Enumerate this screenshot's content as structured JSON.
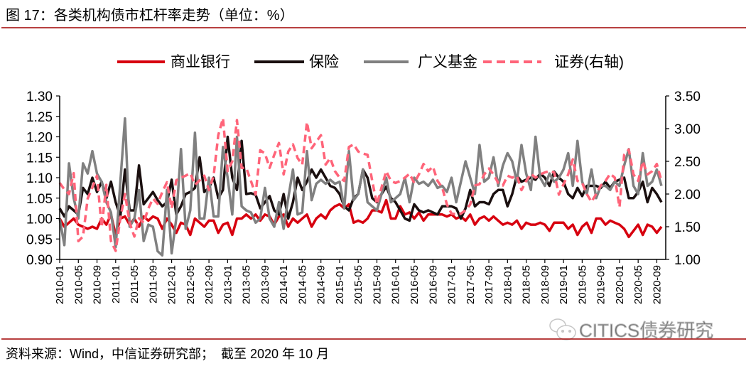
{
  "title": "图 17：各类机构债市杠杆率走势（单位：%）",
  "source": "资料来源：Wind，中信证券研究部；  截至 2020 年 10 月",
  "watermark": "CITICS债券研究",
  "chart_data": {
    "type": "line",
    "legend_position": "top",
    "grid": false,
    "y_left": {
      "range": [
        0.9,
        1.3
      ],
      "ticks": [
        "0.90",
        "0.95",
        "1.00",
        "1.05",
        "1.10",
        "1.15",
        "1.20",
        "1.25",
        "1.30"
      ]
    },
    "y_right": {
      "range": [
        1.0,
        3.5
      ],
      "ticks": [
        "1.00",
        "1.50",
        "2.00",
        "2.50",
        "3.00",
        "3.50"
      ]
    },
    "x_ticks": [
      "2010-01",
      "2010-05",
      "2010-09",
      "2011-01",
      "2011-05",
      "2011-09",
      "2012-01",
      "2012-05",
      "2012-09",
      "2013-01",
      "2013-05",
      "2013-09",
      "2014-01",
      "2014-05",
      "2014-09",
      "2015-01",
      "2015-05",
      "2015-09",
      "2016-01",
      "2016-05",
      "2016-09",
      "2017-01",
      "2017-05",
      "2017-09",
      "2018-01",
      "2018-05",
      "2018-09",
      "2019-01",
      "2019-05",
      "2019-09",
      "2020-01",
      "2020-05",
      "2020-09"
    ],
    "categories": [
      "2010-01",
      "2010-02",
      "2010-03",
      "2010-04",
      "2010-05",
      "2010-06",
      "2010-07",
      "2010-08",
      "2010-09",
      "2010-10",
      "2010-11",
      "2010-12",
      "2011-01",
      "2011-02",
      "2011-03",
      "2011-04",
      "2011-05",
      "2011-06",
      "2011-07",
      "2011-08",
      "2011-09",
      "2011-10",
      "2011-11",
      "2011-12",
      "2012-01",
      "2012-02",
      "2012-03",
      "2012-04",
      "2012-05",
      "2012-06",
      "2012-07",
      "2012-08",
      "2012-09",
      "2012-10",
      "2012-11",
      "2012-12",
      "2013-01",
      "2013-02",
      "2013-03",
      "2013-04",
      "2013-05",
      "2013-06",
      "2013-07",
      "2013-08",
      "2013-09",
      "2013-10",
      "2013-11",
      "2013-12",
      "2014-01",
      "2014-02",
      "2014-03",
      "2014-04",
      "2014-05",
      "2014-06",
      "2014-07",
      "2014-08",
      "2014-09",
      "2014-10",
      "2014-11",
      "2014-12",
      "2015-01",
      "2015-02",
      "2015-03",
      "2015-04",
      "2015-05",
      "2015-06",
      "2015-07",
      "2015-08",
      "2015-09",
      "2015-10",
      "2015-11",
      "2015-12",
      "2016-01",
      "2016-02",
      "2016-03",
      "2016-04",
      "2016-05",
      "2016-06",
      "2016-07",
      "2016-08",
      "2016-09",
      "2016-10",
      "2016-11",
      "2016-12",
      "2017-01",
      "2017-02",
      "2017-03",
      "2017-04",
      "2017-05",
      "2017-06",
      "2017-07",
      "2017-08",
      "2017-09",
      "2017-10",
      "2017-11",
      "2017-12",
      "2018-01",
      "2018-02",
      "2018-03",
      "2018-04",
      "2018-05",
      "2018-06",
      "2018-07",
      "2018-08",
      "2018-09",
      "2018-10",
      "2018-11",
      "2018-12",
      "2019-01",
      "2019-02",
      "2019-03",
      "2019-04",
      "2019-05",
      "2019-06",
      "2019-07",
      "2019-08",
      "2019-09",
      "2019-10",
      "2019-11",
      "2019-12",
      "2020-01",
      "2020-02",
      "2020-03",
      "2020-04",
      "2020-05",
      "2020-06",
      "2020-07",
      "2020-08",
      "2020-09",
      "2020-10"
    ],
    "series": [
      {
        "name": "商业银行",
        "axis": "left",
        "color": "#d7000f",
        "dash": false,
        "values": [
          1.0,
          0.98,
          0.99,
          1.0,
          0.985,
          0.98,
          0.975,
          0.98,
          0.975,
          1.0,
          0.985,
          1.01,
          0.96,
          1.0,
          1.005,
          0.985,
          1.0,
          0.98,
          1.005,
          0.995,
          1.005,
          1.0,
          0.975,
          1.0,
          0.985,
          0.965,
          0.99,
          0.985,
          0.96,
          1.0,
          0.99,
          0.98,
          0.995,
          0.995,
          0.965,
          0.985,
          0.99,
          0.96,
          1.0,
          1.0,
          1.01,
          1.0,
          1.01,
          0.995,
          1.01,
          1.005,
          0.985,
          1.005,
          1.01,
          0.98,
          1.0,
          0.99,
          1.0,
          1.01,
          0.98,
          1.0,
          1.01,
          1.0,
          1.02,
          1.03,
          1.035,
          1.025,
          1.035,
          0.99,
          0.995,
          0.99,
          1.0,
          1.02,
          1.02,
          1.015,
          1.045,
          1.0,
          1.0,
          1.03,
          1.01,
          1.015,
          1.0,
          1.015,
          0.995,
          1.01,
          1.01,
          1.01,
          1.01,
          1.005,
          1.01,
          1.0,
          1.005,
          0.995,
          1.01,
          0.985,
          1.0,
          1.005,
          0.995,
          1.005,
          0.995,
          0.985,
          0.99,
          0.985,
          0.995,
          0.975,
          0.99,
          0.985,
          0.985,
          0.99,
          0.985,
          0.97,
          0.99,
          0.99,
          0.99,
          0.975,
          0.985,
          0.96,
          0.98,
          0.99,
          0.965,
          1.0,
          1.0,
          0.985,
          0.995,
          0.99,
          0.985,
          0.975,
          0.955,
          0.97,
          0.985,
          0.96,
          0.985,
          0.98,
          0.965,
          0.98
        ]
      },
      {
        "name": "保险",
        "axis": "left",
        "color": "#1a0f0f",
        "dash": false,
        "values": [
          1.025,
          1.005,
          1.03,
          1.02,
          1.01,
          1.075,
          1.06,
          1.1,
          1.065,
          1.09,
          1.05,
          1.09,
          1.04,
          1.005,
          1.12,
          1.02,
          1.02,
          1.13,
          1.035,
          1.05,
          1.065,
          1.045,
          1.03,
          1.04,
          1.095,
          1.01,
          1.03,
          1.06,
          1.065,
          1.075,
          1.15,
          1.065,
          1.075,
          1.1,
          1.05,
          1.07,
          1.2,
          1.1,
          1.07,
          1.19,
          1.06,
          1.062,
          1.058,
          1.025,
          1.04,
          1.055,
          1.02,
          1.01,
          1.06,
          1.0,
          1.04,
          1.1,
          1.07,
          1.09,
          1.12,
          1.1,
          1.12,
          1.1,
          1.08,
          1.075,
          1.06,
          1.03,
          1.02,
          1.05,
          1.06,
          1.12,
          1.1,
          1.05,
          1.04,
          1.06,
          1.078,
          1.05,
          1.04,
          1.02,
          1.0,
          0.995,
          1.035,
          1.02,
          1.015,
          1.02,
          1.015,
          1.01,
          1.03,
          1.03,
          1.03,
          1.025,
          1.0,
          1.025,
          1.07,
          1.03,
          1.04,
          1.04,
          1.035,
          1.06,
          1.07,
          1.07,
          1.03,
          1.06,
          1.105,
          1.09,
          1.095,
          1.1,
          1.095,
          1.11,
          1.1,
          1.08,
          1.115,
          1.1,
          1.09,
          1.06,
          1.05,
          1.075,
          1.055,
          1.08,
          1.08,
          1.08,
          1.075,
          1.09,
          1.075,
          1.09,
          1.095,
          1.1,
          1.05,
          1.05,
          1.065,
          1.09,
          1.04,
          1.075,
          1.06,
          1.04
        ]
      },
      {
        "name": "广义基金",
        "axis": "left",
        "color": "#808080",
        "dash": false,
        "values": [
          1.0,
          0.935,
          1.135,
          1.05,
          1.0,
          1.135,
          1.11,
          1.165,
          1.11,
          1.09,
          1.04,
          1.015,
          0.93,
          1.09,
          1.245,
          0.98,
          1.0,
          1.07,
          0.945,
          0.985,
          0.98,
          0.92,
          0.91,
          1.07,
          0.915,
          1.0,
          1.17,
          0.975,
          1.02,
          1.21,
          1.0,
          1.0,
          1.1,
          1.005,
          1.005,
          1.175,
          1.1,
          1.01,
          1.2,
          1.03,
          1.02,
          1.015,
          0.99,
          1.0,
          1.075,
          1.0,
          0.98,
          1.04,
          0.975,
          1.05,
          1.12,
          1.01,
          1.015,
          1.165,
          1.045,
          1.085,
          1.095,
          1.085,
          1.095,
          1.085,
          1.09,
          1.025,
          1.165,
          1.045,
          1.06,
          1.12,
          1.04,
          1.03,
          1.02,
          1.06,
          1.1,
          1.04,
          1.05,
          1.06,
          1.1,
          1.04,
          1.1,
          1.085,
          1.09,
          1.08,
          1.095,
          1.075,
          1.08,
          1.065,
          1.1,
          1.04,
          1.09,
          1.14,
          1.1,
          1.06,
          1.18,
          1.09,
          1.1,
          1.15,
          1.08,
          1.13,
          1.16,
          1.14,
          1.09,
          1.18,
          1.11,
          1.07,
          1.2,
          1.1,
          1.08,
          1.11,
          1.09,
          1.1,
          1.12,
          1.16,
          1.08,
          1.19,
          1.09,
          1.06,
          1.12,
          1.05,
          1.08,
          1.08,
          1.07,
          1.09,
          1.08,
          1.13,
          1.17,
          1.08,
          1.06,
          1.16,
          1.08,
          1.09,
          1.12,
          1.08
        ]
      },
      {
        "name": "证券(右轴)",
        "axis": "right",
        "color": "#ff6479",
        "dash": true,
        "values": [
          2.17,
          2.07,
          2.0,
          2.32,
          1.28,
          1.35,
          1.93,
          2.1,
          2.28,
          1.49,
          2.14,
          1.28,
          1.13,
          1.63,
          2.0,
          1.56,
          1.35,
          1.63,
          1.56,
          1.78,
          1.93,
          1.85,
          2.03,
          2.18,
          1.78,
          2.21,
          2.25,
          2.28,
          2.32,
          2.14,
          2.21,
          2.28,
          2.06,
          2.28,
          2.9,
          3.16,
          2.35,
          2.5,
          3.13,
          2.4,
          2.4,
          2.2,
          1.99,
          2.67,
          2.62,
          2.4,
          2.6,
          2.78,
          2.3,
          2.65,
          2.76,
          2.55,
          2.45,
          3.1,
          2.7,
          2.8,
          2.9,
          2.45,
          2.55,
          2.35,
          2.25,
          2.2,
          2.72,
          2.76,
          2.65,
          2.62,
          2.6,
          2.2,
          1.84,
          2.1,
          2.35,
          2.2,
          2.17,
          2.2,
          2.25,
          2.31,
          2.17,
          2.3,
          2.46,
          2.35,
          2.42,
          2.2,
          2.1,
          1.84,
          1.7,
          1.69,
          1.7,
          1.75,
          1.84,
          2.13,
          2.15,
          2.3,
          2.39,
          2.3,
          2.17,
          2.13,
          2.28,
          2.25,
          2.28,
          2.06,
          2.2,
          2.31,
          2.25,
          2.3,
          2.33,
          2.35,
          2.33,
          1.99,
          2.15,
          2.3,
          2.53,
          2.2,
          2.17,
          2.0,
          1.88,
          2.0,
          2.13,
          2.2,
          2.31,
          2.25,
          1.8,
          2.6,
          2.68,
          2.3,
          2.2,
          2.5,
          2.3,
          2.35,
          2.46,
          2.2
        ]
      }
    ]
  }
}
